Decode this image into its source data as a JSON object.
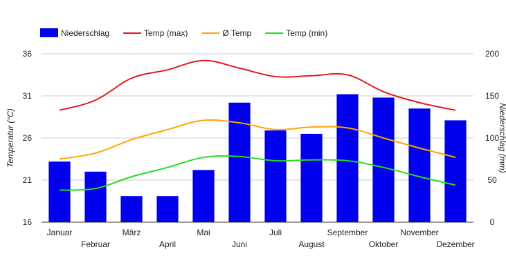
{
  "chart_data": {
    "type": "bar",
    "categories": [
      "Januar",
      "Februar",
      "März",
      "April",
      "Mai",
      "Juni",
      "Juli",
      "August",
      "September",
      "Oktober",
      "November",
      "Dezember"
    ],
    "ylabel_left": "Temperatur (°C)",
    "ylabel_right": "Niederschlag (mm)",
    "ylim_left": [
      16,
      36
    ],
    "yticks_left": [
      16,
      21,
      26,
      31,
      36
    ],
    "ylim_right": [
      0,
      200
    ],
    "yticks_right": [
      0,
      50,
      100,
      150,
      200
    ],
    "grid": true,
    "legend_position": "top-left",
    "series": [
      {
        "name": "Niederschlag",
        "type": "bar",
        "axis": "right",
        "color": "#0000ee",
        "values": [
          72,
          60,
          31,
          31,
          62,
          142,
          109,
          105,
          152,
          148,
          135,
          121
        ]
      },
      {
        "name": "Temp (max)",
        "type": "line",
        "axis": "left",
        "color": "#e31a1c",
        "values": [
          29.3,
          30.5,
          33.1,
          34.1,
          35.2,
          34.3,
          33.3,
          33.4,
          33.5,
          31.5,
          30.2,
          29.3
        ]
      },
      {
        "name": "Ø Temp",
        "type": "line",
        "axis": "left",
        "color": "#ffa500",
        "values": [
          23.5,
          24.2,
          25.8,
          27.0,
          28.1,
          27.8,
          27.0,
          27.3,
          27.2,
          26.0,
          24.8,
          23.7
        ]
      },
      {
        "name": "Temp (min)",
        "type": "line",
        "axis": "left",
        "color": "#22dd22",
        "values": [
          19.8,
          20.0,
          21.4,
          22.5,
          23.7,
          23.8,
          23.3,
          23.4,
          23.3,
          22.5,
          21.4,
          20.4
        ]
      }
    ]
  }
}
